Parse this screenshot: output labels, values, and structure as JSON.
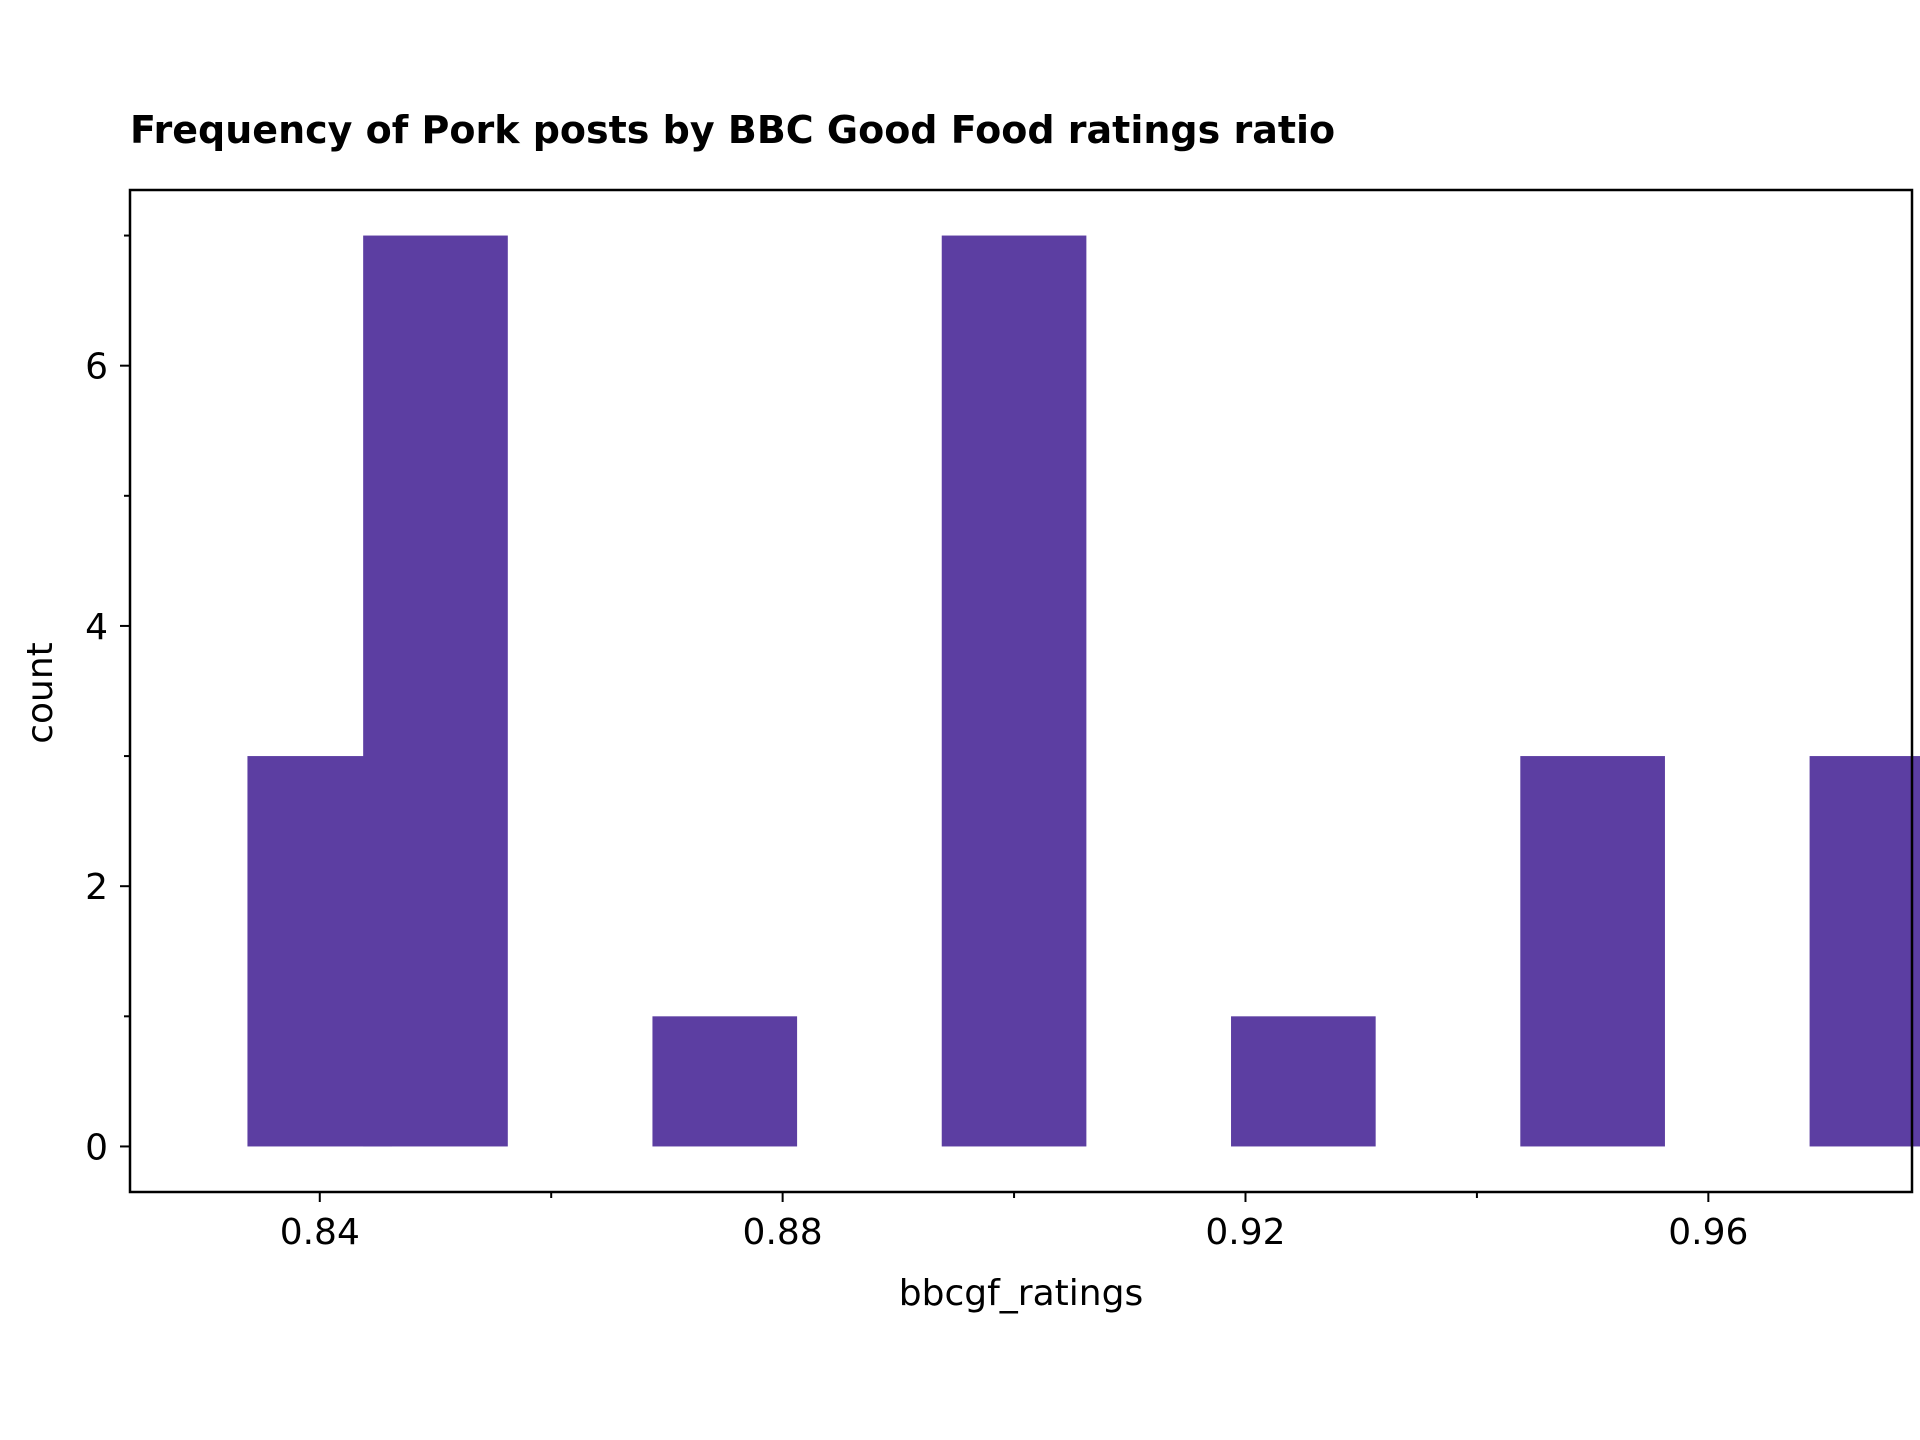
{
  "chart_data": {
    "type": "bar",
    "title": "Frequency of Pork posts by BBC Good Food ratings ratio",
    "xlabel": "bbcgf_ratings",
    "ylabel": "count",
    "x": [
      0.84,
      0.85,
      0.875,
      0.9,
      0.925,
      0.95,
      0.975
    ],
    "values": [
      3,
      7,
      1,
      7,
      1,
      3,
      3
    ],
    "xlim": [
      0.8236,
      0.9776
    ],
    "ylim": [
      -0.35,
      7.35
    ],
    "x_major_ticks": [
      0.84,
      0.88,
      0.92,
      0.96
    ],
    "x_tick_labels": [
      "0.84",
      "0.88",
      "0.92",
      "0.96"
    ],
    "x_minor_ticks": [
      0.86,
      0.9,
      0.94
    ],
    "y_major_ticks": [
      0,
      2,
      4,
      6
    ],
    "y_tick_labels": [
      "0",
      "2",
      "4",
      "6"
    ],
    "y_minor_ticks": [
      1,
      3,
      5,
      7
    ],
    "grid": false,
    "legend": "none",
    "bar_color": "#5c3ea2"
  }
}
